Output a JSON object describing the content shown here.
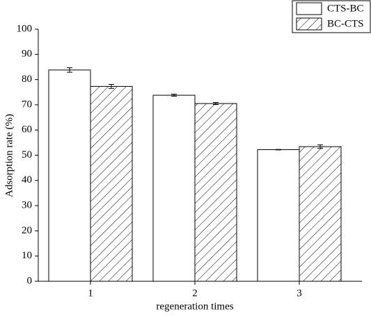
{
  "chart_data": {
    "type": "bar",
    "x_label": "regeneration times",
    "y_label": "Adsorption rate (%)",
    "x": [
      1,
      2,
      3
    ],
    "series": [
      {
        "name": "CTS-BC",
        "color": "#ffffff",
        "hatch": false,
        "values": [
          83.8,
          73.8,
          52.2
        ],
        "errors": [
          0.9,
          0.4,
          0.1
        ]
      },
      {
        "name": "BC-CTS",
        "color": "#ffffff",
        "hatch": true,
        "values": [
          77.3,
          70.5,
          53.4
        ],
        "errors": [
          0.8,
          0.4,
          0.7
        ]
      }
    ],
    "xlim": [
      0.5,
      3.6
    ],
    "xticks": [
      1,
      2,
      3
    ],
    "ylim": [
      0,
      100
    ],
    "yticks": [
      0,
      10,
      20,
      30,
      40,
      50,
      60,
      70,
      80,
      90,
      100
    ],
    "legend": "upper right"
  }
}
